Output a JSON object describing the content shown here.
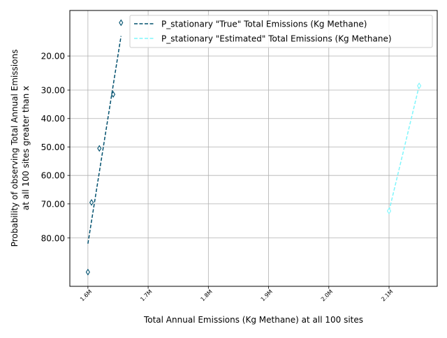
{
  "chart_data": {
    "type": "scatter",
    "xlabel": "Total Annual Emissions (Kg Methane) at all 100 sites",
    "ylabel_lines": [
      "Probability of observing Total Annual Emissions",
      "at all 100 sites greater than x"
    ],
    "xlim": [
      1570000,
      2180000
    ],
    "ylim": [
      97,
      0
    ],
    "y_inverted": true,
    "grid": true,
    "legend_position": "top-right",
    "x_ticks": [
      {
        "value": 1600000,
        "label": "1.6M"
      },
      {
        "value": 1700000,
        "label": "1.7M"
      },
      {
        "value": 1800000,
        "label": "1.8M"
      },
      {
        "value": 1900000,
        "label": "1.9M"
      },
      {
        "value": 2000000,
        "label": "2.0M"
      },
      {
        "value": 2100000,
        "label": "2.1M"
      }
    ],
    "y_ticks": [
      {
        "value": 16,
        "label": "20.00"
      },
      {
        "value": 28,
        "label": "30.00"
      },
      {
        "value": 38,
        "label": "40.00"
      },
      {
        "value": 48,
        "label": "50.00"
      },
      {
        "value": 58,
        "label": "60.00"
      },
      {
        "value": 68,
        "label": "70.00"
      },
      {
        "value": 80,
        "label": "80.00"
      }
    ],
    "series": [
      {
        "name": "P_stationary \"True\" Total Emissions (Kg Methane)",
        "color": "#00506e",
        "markers": [
          {
            "x": 1600000,
            "y": 92
          },
          {
            "x": 1606000,
            "y": 67.5
          },
          {
            "x": 1619000,
            "y": 48.5
          },
          {
            "x": 1642000,
            "y": 29.5
          },
          {
            "x": 1655000,
            "y": 4.3
          }
        ],
        "fit_line": [
          {
            "x": 1600000,
            "y": 82
          },
          {
            "x": 1655000,
            "y": 9
          }
        ]
      },
      {
        "name": "P_stationary \"Estimated\" Total Emissions (Kg Methane)",
        "color": "#7ff6fc",
        "markers": [
          {
            "x": 2100000,
            "y": 70.5
          },
          {
            "x": 2150000,
            "y": 26.5
          }
        ],
        "fit_line": [
          {
            "x": 2100000,
            "y": 70.5
          },
          {
            "x": 2150000,
            "y": 26.5
          }
        ]
      }
    ]
  }
}
